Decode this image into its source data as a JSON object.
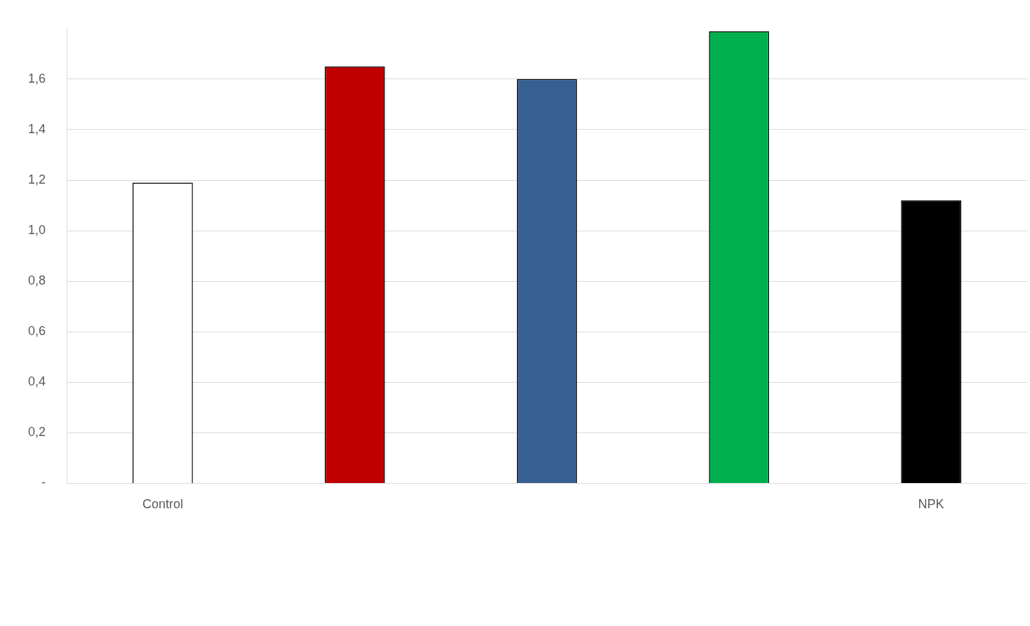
{
  "chart_data": {
    "type": "bar",
    "categories": [
      "Control",
      null,
      null,
      null,
      "NPK"
    ],
    "values": [
      1.19,
      1.65,
      1.6,
      1.79,
      1.12
    ],
    "colors": [
      "#ffffff",
      "#c00000",
      "#376092",
      "#00b050",
      "#000000"
    ],
    "ylim": [
      0,
      1.8
    ],
    "yticks": [
      {
        "value": 0,
        "label": "-"
      },
      {
        "value": 0.2,
        "label": "0,2"
      },
      {
        "value": 0.4,
        "label": "0,4"
      },
      {
        "value": 0.6,
        "label": "0,6"
      },
      {
        "value": 0.8,
        "label": "0,8"
      },
      {
        "value": 1,
        "label": "1,0"
      },
      {
        "value": 1.2,
        "label": "1,2"
      },
      {
        "value": 1.4,
        "label": "1,4"
      },
      {
        "value": 1.6,
        "label": "1,6"
      }
    ],
    "grid": true
  }
}
